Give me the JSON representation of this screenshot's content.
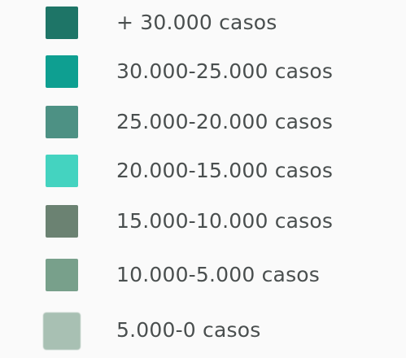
{
  "legend": {
    "items": [
      {
        "label": "+  30.000 casos",
        "color": "#1e7567"
      },
      {
        "label": "30.000-25.000 casos",
        "color": "#0e9f91"
      },
      {
        "label": "25.000-20.000 casos",
        "color": "#4d9184"
      },
      {
        "label": "20.000-15.000 casos",
        "color": "#44d3c0"
      },
      {
        "label": "15.000-10.000 casos",
        "color": "#6b8272"
      },
      {
        "label": "10.000-5.000 casos",
        "color": "#78a08b"
      },
      {
        "label": "5.000-0 casos",
        "color": "#a8c0b3"
      }
    ]
  }
}
